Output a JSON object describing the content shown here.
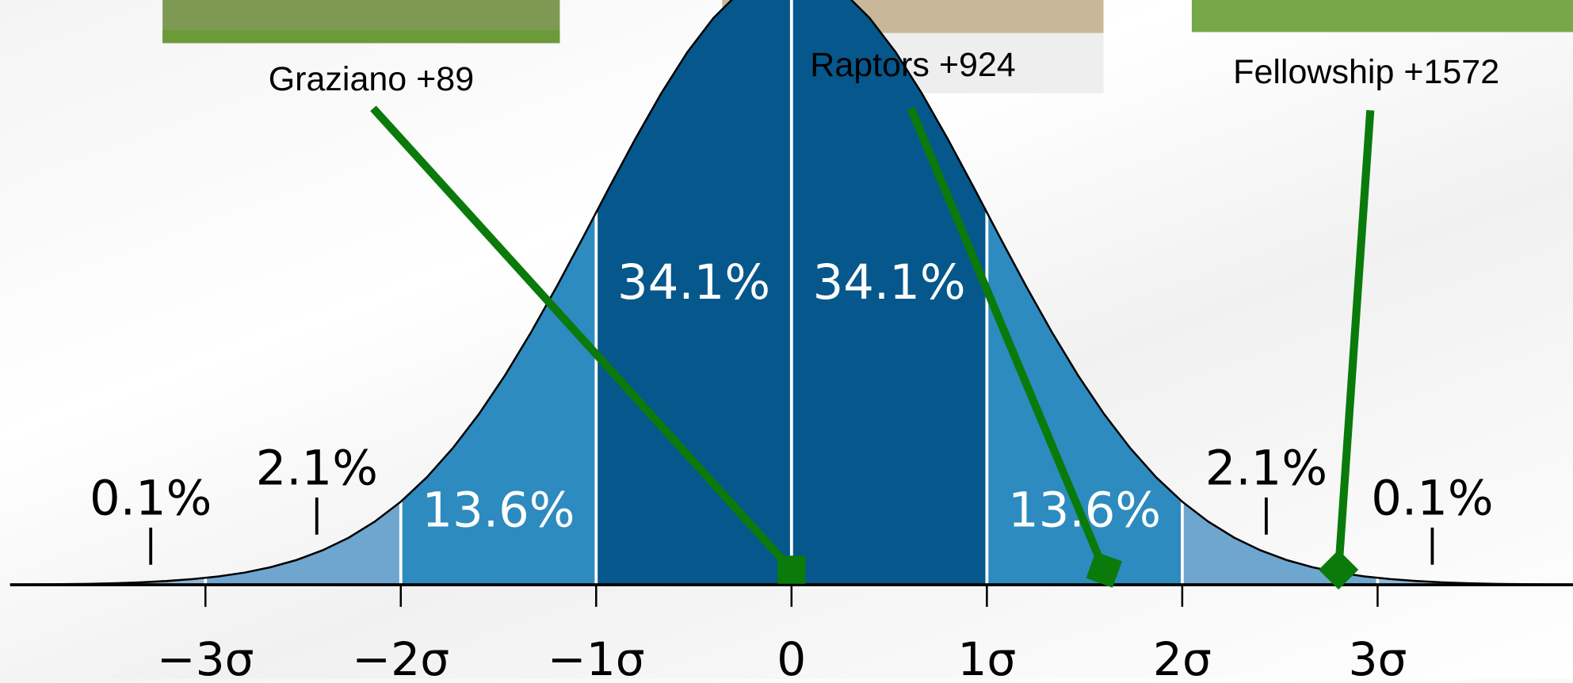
{
  "chart_data": {
    "type": "normal",
    "xlim": [
      -4,
      4
    ],
    "ylim": [
      0,
      0.38
    ],
    "xticks": [
      {
        "value": -3,
        "label": "−3σ"
      },
      {
        "value": -2,
        "label": "−2σ"
      },
      {
        "value": -1,
        "label": "−1σ"
      },
      0,
      {
        "value": 1,
        "label": "1σ"
      },
      {
        "value": 2,
        "label": "2σ"
      },
      {
        "value": 3,
        "label": "3σ"
      }
    ],
    "regions": {
      "edges": [
        -4,
        -3,
        -2,
        -1,
        0,
        1,
        2,
        3,
        4
      ],
      "values": [
        0.1,
        2.1,
        13.6,
        34.1,
        34.1,
        13.6,
        2.1,
        0.1
      ],
      "value_labels": [
        "0.1%",
        "2.1%",
        "13.6%",
        "34.1%",
        "34.1%",
        "13.6%",
        "2.1%",
        "0.1%"
      ],
      "colors": [
        "#8bb8db",
        "#6fa6cf",
        "#2e8bc0",
        "#06578c",
        "#06578c",
        "#2e8bc0",
        "#6fa6cf",
        "#8bb8db"
      ]
    },
    "markers": {
      "labels": [
        "Graziano +89",
        "Raptors +924",
        "Fellowship +1572"
      ],
      "x": [
        0,
        1.6,
        2.8
      ],
      "color": "#0a7a0a"
    }
  }
}
